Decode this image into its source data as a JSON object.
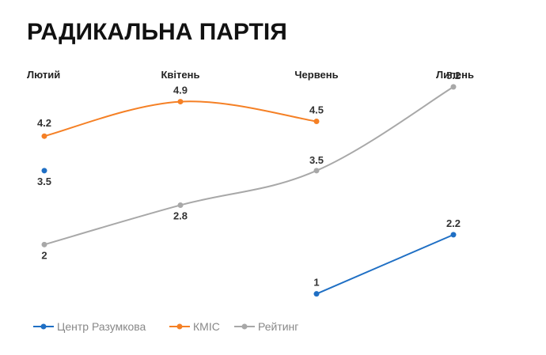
{
  "chart_data": {
    "type": "line",
    "title": "РАДИКАЛЬНА ПАРТІЯ",
    "xlabel": "",
    "ylabel": "",
    "categories": [
      "Лютий",
      "Квітень",
      "Червень",
      "Липень"
    ],
    "ylim": [
      0,
      6
    ],
    "grid": false,
    "legend_position": "bottom-left",
    "series": [
      {
        "name": "Центр Разумкова",
        "color": "#1f6fc4",
        "values": [
          3.5,
          null,
          1,
          2.2
        ]
      },
      {
        "name": "КМІС",
        "color": "#f58025",
        "values": [
          4.2,
          4.9,
          4.5,
          null
        ]
      },
      {
        "name": "Рейтинг",
        "color": "#a8a8a8",
        "values": [
          2,
          2.8,
          3.5,
          5.2
        ]
      }
    ]
  }
}
